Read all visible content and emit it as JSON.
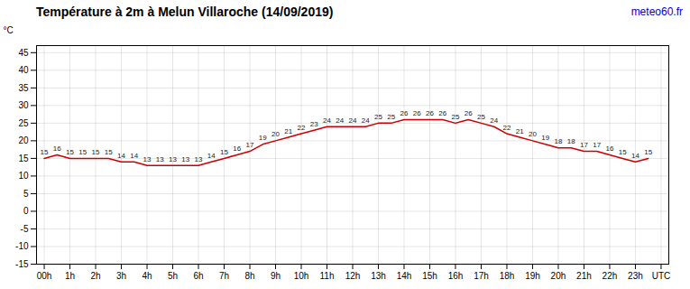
{
  "chart_data": {
    "type": "line",
    "title": "Température à 2m à Melun Villaroche (14/09/2019)",
    "ylabel": "°C",
    "x": [
      0,
      0.5,
      1,
      1.5,
      2,
      2.5,
      3,
      3.5,
      4,
      4.5,
      5,
      5.5,
      6,
      6.5,
      7,
      7.5,
      8,
      8.5,
      9,
      9.5,
      10,
      10.5,
      11,
      11.5,
      12,
      12.5,
      13,
      13.5,
      14,
      14.5,
      15,
      15.5,
      16,
      16.5,
      17,
      17.5,
      18,
      18.5,
      19,
      19.5,
      20,
      20.5,
      21,
      21.5,
      22,
      22.5,
      23,
      23.5
    ],
    "values": [
      15,
      16,
      15,
      15,
      15,
      15,
      14,
      14,
      13,
      13,
      13,
      13,
      13,
      14,
      15,
      16,
      17,
      19,
      20,
      21,
      22,
      23,
      24,
      24,
      24,
      24,
      25,
      25,
      26,
      26,
      26,
      26,
      25,
      26,
      25,
      24,
      22,
      21,
      20,
      19,
      18,
      18,
      17,
      17,
      16,
      15,
      14,
      15
    ],
    "color": "#cc0000",
    "data_labels": true,
    "xlim": [
      -0.3,
      24.3
    ],
    "xticks": [
      {
        "value": 0,
        "label": "00h"
      },
      {
        "value": 1,
        "label": "1h"
      },
      {
        "value": 2,
        "label": "2h"
      },
      {
        "value": 3,
        "label": "3h"
      },
      {
        "value": 4,
        "label": "4h"
      },
      {
        "value": 5,
        "label": "5h"
      },
      {
        "value": 6,
        "label": "6h"
      },
      {
        "value": 7,
        "label": "7h"
      },
      {
        "value": 8,
        "label": "8h"
      },
      {
        "value": 9,
        "label": "9h"
      },
      {
        "value": 10,
        "label": "10h"
      },
      {
        "value": 11,
        "label": "11h"
      },
      {
        "value": 12,
        "label": "12h"
      },
      {
        "value": 13,
        "label": "13h"
      },
      {
        "value": 14,
        "label": "14h"
      },
      {
        "value": 15,
        "label": "15h"
      },
      {
        "value": 16,
        "label": "16h"
      },
      {
        "value": 17,
        "label": "17h"
      },
      {
        "value": 18,
        "label": "18h"
      },
      {
        "value": 19,
        "label": "19h"
      },
      {
        "value": 20,
        "label": "20h"
      },
      {
        "value": 21,
        "label": "21h"
      },
      {
        "value": 22,
        "label": "22h"
      },
      {
        "value": 23,
        "label": "23h"
      },
      {
        "value": 24,
        "label": "UTC"
      }
    ],
    "ylim": [
      -15,
      47
    ],
    "yticks": [
      -15,
      -10,
      -5,
      0,
      5,
      10,
      15,
      20,
      25,
      30,
      35,
      40,
      45
    ],
    "grid": true,
    "annotations": [
      {
        "text": "meteo60.fr",
        "color": "#0000cc"
      }
    ]
  }
}
